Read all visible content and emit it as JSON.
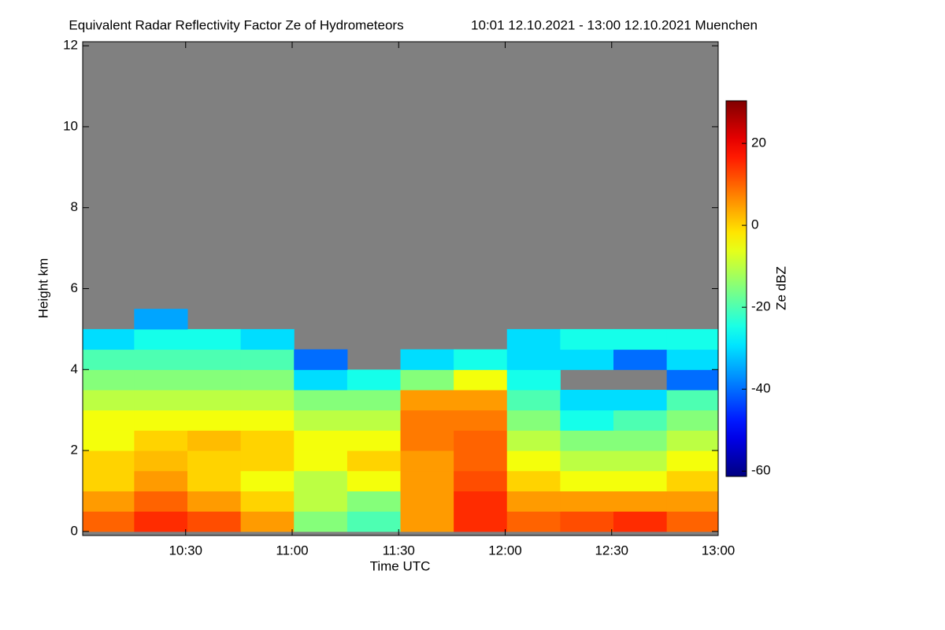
{
  "chart_data": {
    "type": "heatmap",
    "title": "Equivalent Radar Reflectivity Factor Ze of Hydrometeors",
    "subtitle": "10:01 12.10.2021 - 13:00 12.10.2021 Muenchen",
    "xlabel": "Time UTC",
    "ylabel": "Height km",
    "colorbar_label": "Ze dBZ",
    "colormap": "jet",
    "nodata_color": "#808080",
    "x": [
      608,
      623,
      638,
      653,
      668,
      683,
      698,
      713,
      728,
      743,
      758,
      773
    ],
    "y": [
      0.25,
      0.75,
      1.25,
      1.75,
      2.25,
      2.75,
      3.25,
      3.75,
      4.25,
      4.75,
      5.25
    ],
    "z": [
      [
        10,
        15,
        12,
        5,
        -15,
        -20,
        5,
        15,
        10,
        12,
        15,
        10
      ],
      [
        5,
        10,
        5,
        0,
        -10,
        -15,
        5,
        15,
        5,
        5,
        5,
        5
      ],
      [
        0,
        5,
        0,
        -5,
        -10,
        -5,
        5,
        12,
        0,
        -5,
        -5,
        0
      ],
      [
        0,
        2,
        0,
        0,
        -5,
        0,
        5,
        10,
        -5,
        -10,
        -10,
        -5
      ],
      [
        -5,
        0,
        2,
        0,
        -5,
        -5,
        8,
        10,
        -10,
        -15,
        -15,
        -10
      ],
      [
        -5,
        -5,
        -5,
        -5,
        -10,
        -10,
        8,
        8,
        -15,
        -25,
        -20,
        -15
      ],
      [
        -10,
        -10,
        -10,
        -10,
        -15,
        -15,
        5,
        5,
        -20,
        -30,
        -30,
        -20
      ],
      [
        -15,
        -15,
        -15,
        -15,
        -30,
        -25,
        -15,
        -5,
        -25,
        null,
        null,
        -40
      ],
      [
        -20,
        -20,
        -20,
        -20,
        -40,
        null,
        -30,
        -25,
        -30,
        -30,
        -40,
        -30
      ],
      [
        -30,
        -25,
        -25,
        -30,
        null,
        null,
        null,
        null,
        -30,
        -25,
        -25,
        -25
      ],
      [
        null,
        -35,
        null,
        null,
        null,
        null,
        null,
        null,
        null,
        null,
        null,
        null
      ]
    ],
    "xlim": [
      601,
      780
    ],
    "ylim": [
      -0.1,
      12.1
    ],
    "zlim": [
      -61.3,
      30.4
    ],
    "xticks": [
      {
        "value": 630,
        "label": "10:30"
      },
      {
        "value": 660,
        "label": "11:00"
      },
      {
        "value": 690,
        "label": "11:30"
      },
      {
        "value": 720,
        "label": "12:00"
      },
      {
        "value": 750,
        "label": "12:30"
      },
      {
        "value": 780,
        "label": "13:00"
      }
    ],
    "yticks": [
      0,
      2,
      4,
      6,
      8,
      10,
      12
    ],
    "zticks": [
      -60,
      -40,
      -20,
      0,
      20
    ]
  }
}
